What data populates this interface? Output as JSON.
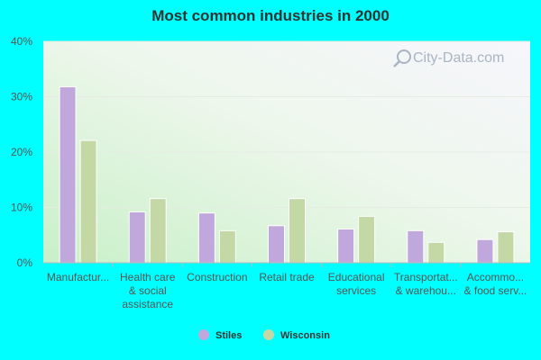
{
  "chart_data": {
    "type": "bar",
    "title": "Most common industries in 2000",
    "categories": [
      [
        "Manufactur..."
      ],
      [
        "Health care",
        "& social",
        "assistance"
      ],
      [
        "Construction"
      ],
      [
        "Retail trade"
      ],
      [
        "Educational",
        "services"
      ],
      [
        "Transportat...",
        "& warehou..."
      ],
      [
        "Accommo...",
        "& food serv..."
      ]
    ],
    "series": [
      {
        "name": "Stiles",
        "color": "#c0a8dc",
        "values": [
          31.8,
          9.2,
          9.0,
          6.7,
          6.1,
          5.8,
          4.2
        ]
      },
      {
        "name": "Wisconsin",
        "color": "#c4d8a6",
        "values": [
          22.1,
          11.6,
          5.8,
          11.6,
          8.4,
          3.7,
          5.6
        ]
      }
    ],
    "ylim": [
      0,
      40
    ],
    "yticks": [
      "0%",
      "10%",
      "20%",
      "30%",
      "40%"
    ],
    "grid": true,
    "legend_position": "bottom-center"
  },
  "watermark": {
    "text": "City-Data.com",
    "icon": "magnifier-icon"
  }
}
